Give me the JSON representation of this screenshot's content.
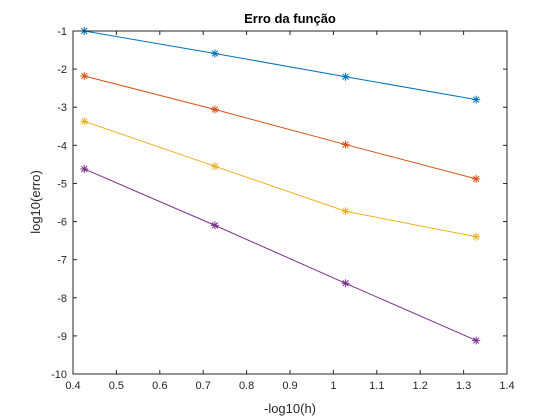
{
  "chart_data": {
    "type": "line",
    "title": "Erro da função",
    "xlabel": "-log10(h)",
    "ylabel": "log10(erro)",
    "xlim": [
      0.4,
      1.4
    ],
    "ylim": [
      -10,
      -1
    ],
    "xticks": [
      0.4,
      0.5,
      0.6,
      0.7,
      0.8,
      0.9,
      1.0,
      1.1,
      1.2,
      1.3,
      1.4
    ],
    "xtick_labels": [
      "0.4",
      "0.5",
      "0.6",
      "0.7",
      "0.8",
      "0.9",
      "1",
      "1.1",
      "1.2",
      "1.3",
      "1.4"
    ],
    "yticks": [
      -10,
      -9,
      -8,
      -7,
      -6,
      -5,
      -4,
      -3,
      -2,
      -1
    ],
    "ytick_labels": [
      "-10",
      "-9",
      "-8",
      "-7",
      "-6",
      "-5",
      "-4",
      "-3",
      "-2",
      "-1"
    ],
    "grid": false,
    "marker": "asterisk",
    "x": [
      0.426,
      0.727,
      1.028,
      1.329
    ],
    "series": [
      {
        "color": "#0072bd",
        "values": [
          -1.0,
          -1.59,
          -2.2,
          -2.8
        ]
      },
      {
        "color": "#d95319",
        "values": [
          -2.18,
          -3.06,
          -3.98,
          -4.88
        ]
      },
      {
        "color": "#edb120",
        "values": [
          -3.37,
          -4.55,
          -5.73,
          -6.4
        ]
      },
      {
        "color": "#7e2f8e",
        "values": [
          -4.62,
          -6.1,
          -7.62,
          -9.12
        ]
      }
    ]
  }
}
